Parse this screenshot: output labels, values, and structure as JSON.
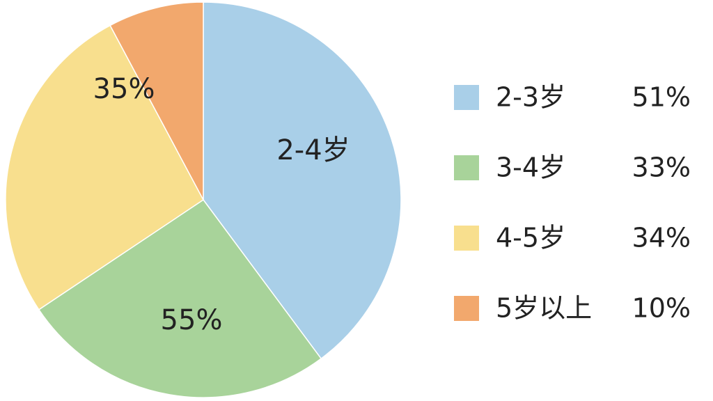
{
  "chart_data": {
    "type": "pie",
    "categories": [
      "2-3岁",
      "3-4岁",
      "4-5岁",
      "5岁以上"
    ],
    "values": [
      51,
      33,
      34,
      10
    ],
    "value_labels": [
      "51%",
      "33%",
      "34%",
      "10%"
    ],
    "colors": [
      "#a9cfe8",
      "#a8d39a",
      "#f8df8e",
      "#f2a86d"
    ],
    "annotations": [
      "35%",
      "2-4岁",
      "55%"
    ]
  }
}
